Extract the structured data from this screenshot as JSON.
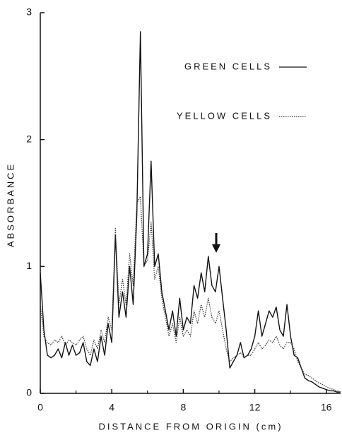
{
  "chart_data": {
    "type": "line",
    "x_label": "DISTANCE FROM ORIGIN (cm)",
    "y_label": "ABSORBANCE",
    "x": [
      0,
      0.2,
      0.4,
      0.6,
      0.8,
      1,
      1.2,
      1.4,
      1.6,
      1.8,
      2,
      2.2,
      2.4,
      2.6,
      2.8,
      3,
      3.2,
      3.4,
      3.6,
      3.8,
      4,
      4.2,
      4.4,
      4.6,
      4.8,
      5,
      5.2,
      5.4,
      5.6,
      5.8,
      6,
      6.2,
      6.4,
      6.6,
      6.8,
      7,
      7.2,
      7.4,
      7.6,
      7.8,
      8,
      8.2,
      8.4,
      8.6,
      8.8,
      9,
      9.2,
      9.4,
      9.6,
      9.8,
      10,
      10.2,
      10.4,
      10.6,
      10.8,
      11,
      11.2,
      11.4,
      11.6,
      11.8,
      12,
      12.2,
      12.4,
      12.6,
      12.8,
      13,
      13.2,
      13.4,
      13.6,
      13.8,
      14,
      14.2,
      14.4,
      14.6,
      14.8,
      15,
      15.2,
      15.4,
      15.6,
      15.8,
      16,
      16.2,
      16.4,
      16.6,
      16.8
    ],
    "series": [
      {
        "name": "GREEN CELLS",
        "color": "#111111",
        "dash": "none",
        "values": [
          0.95,
          0.5,
          0.3,
          0.28,
          0.3,
          0.35,
          0.28,
          0.4,
          0.3,
          0.38,
          0.3,
          0.32,
          0.4,
          0.25,
          0.22,
          0.35,
          0.25,
          0.45,
          0.3,
          0.55,
          0.4,
          1.25,
          0.6,
          0.8,
          0.6,
          1.0,
          0.7,
          1.4,
          2.85,
          1.0,
          1.1,
          1.83,
          1.0,
          1.1,
          0.8,
          0.65,
          0.5,
          0.65,
          0.45,
          0.75,
          0.5,
          0.6,
          0.55,
          0.85,
          0.75,
          0.95,
          0.8,
          1.08,
          0.85,
          0.8,
          1.0,
          0.75,
          0.5,
          0.2,
          0.25,
          0.3,
          0.4,
          0.28,
          0.3,
          0.35,
          0.45,
          0.65,
          0.45,
          0.55,
          0.65,
          0.6,
          0.68,
          0.5,
          0.45,
          0.7,
          0.45,
          0.3,
          0.28,
          0.2,
          0.12,
          0.1,
          0.09,
          0.07,
          0.05,
          0.04,
          0.03,
          0.02,
          0.02,
          0.01,
          0.01
        ]
      },
      {
        "name": "YELLOW CELLS",
        "color": "#333333",
        "dash": "1.5 1.5",
        "values": [
          0.7,
          0.45,
          0.4,
          0.38,
          0.42,
          0.4,
          0.45,
          0.38,
          0.42,
          0.4,
          0.38,
          0.42,
          0.45,
          0.35,
          0.3,
          0.42,
          0.35,
          0.5,
          0.4,
          0.6,
          0.5,
          1.3,
          0.7,
          0.9,
          0.7,
          1.1,
          0.85,
          1.5,
          1.55,
          1.0,
          1.05,
          1.35,
          0.9,
          1.0,
          0.75,
          0.6,
          0.45,
          0.55,
          0.4,
          0.6,
          0.45,
          0.5,
          0.45,
          0.65,
          0.55,
          0.7,
          0.6,
          0.75,
          0.6,
          0.55,
          0.65,
          0.5,
          0.35,
          0.25,
          0.28,
          0.3,
          0.32,
          0.28,
          0.3,
          0.3,
          0.35,
          0.4,
          0.35,
          0.38,
          0.42,
          0.4,
          0.45,
          0.38,
          0.35,
          0.4,
          0.4,
          0.35,
          0.25,
          0.2,
          0.15,
          0.14,
          0.12,
          0.1,
          0.08,
          0.07,
          0.05,
          0.04,
          0.03,
          0.02,
          0.01
        ]
      }
    ],
    "xlim": [
      0,
      16.8
    ],
    "ylim": [
      0,
      3
    ],
    "xticks": [
      0,
      4,
      8,
      12,
      16
    ],
    "xminorticks": [
      2,
      6,
      10,
      14
    ],
    "yticks": [
      0,
      1,
      2,
      3
    ],
    "grid": false
  }
}
